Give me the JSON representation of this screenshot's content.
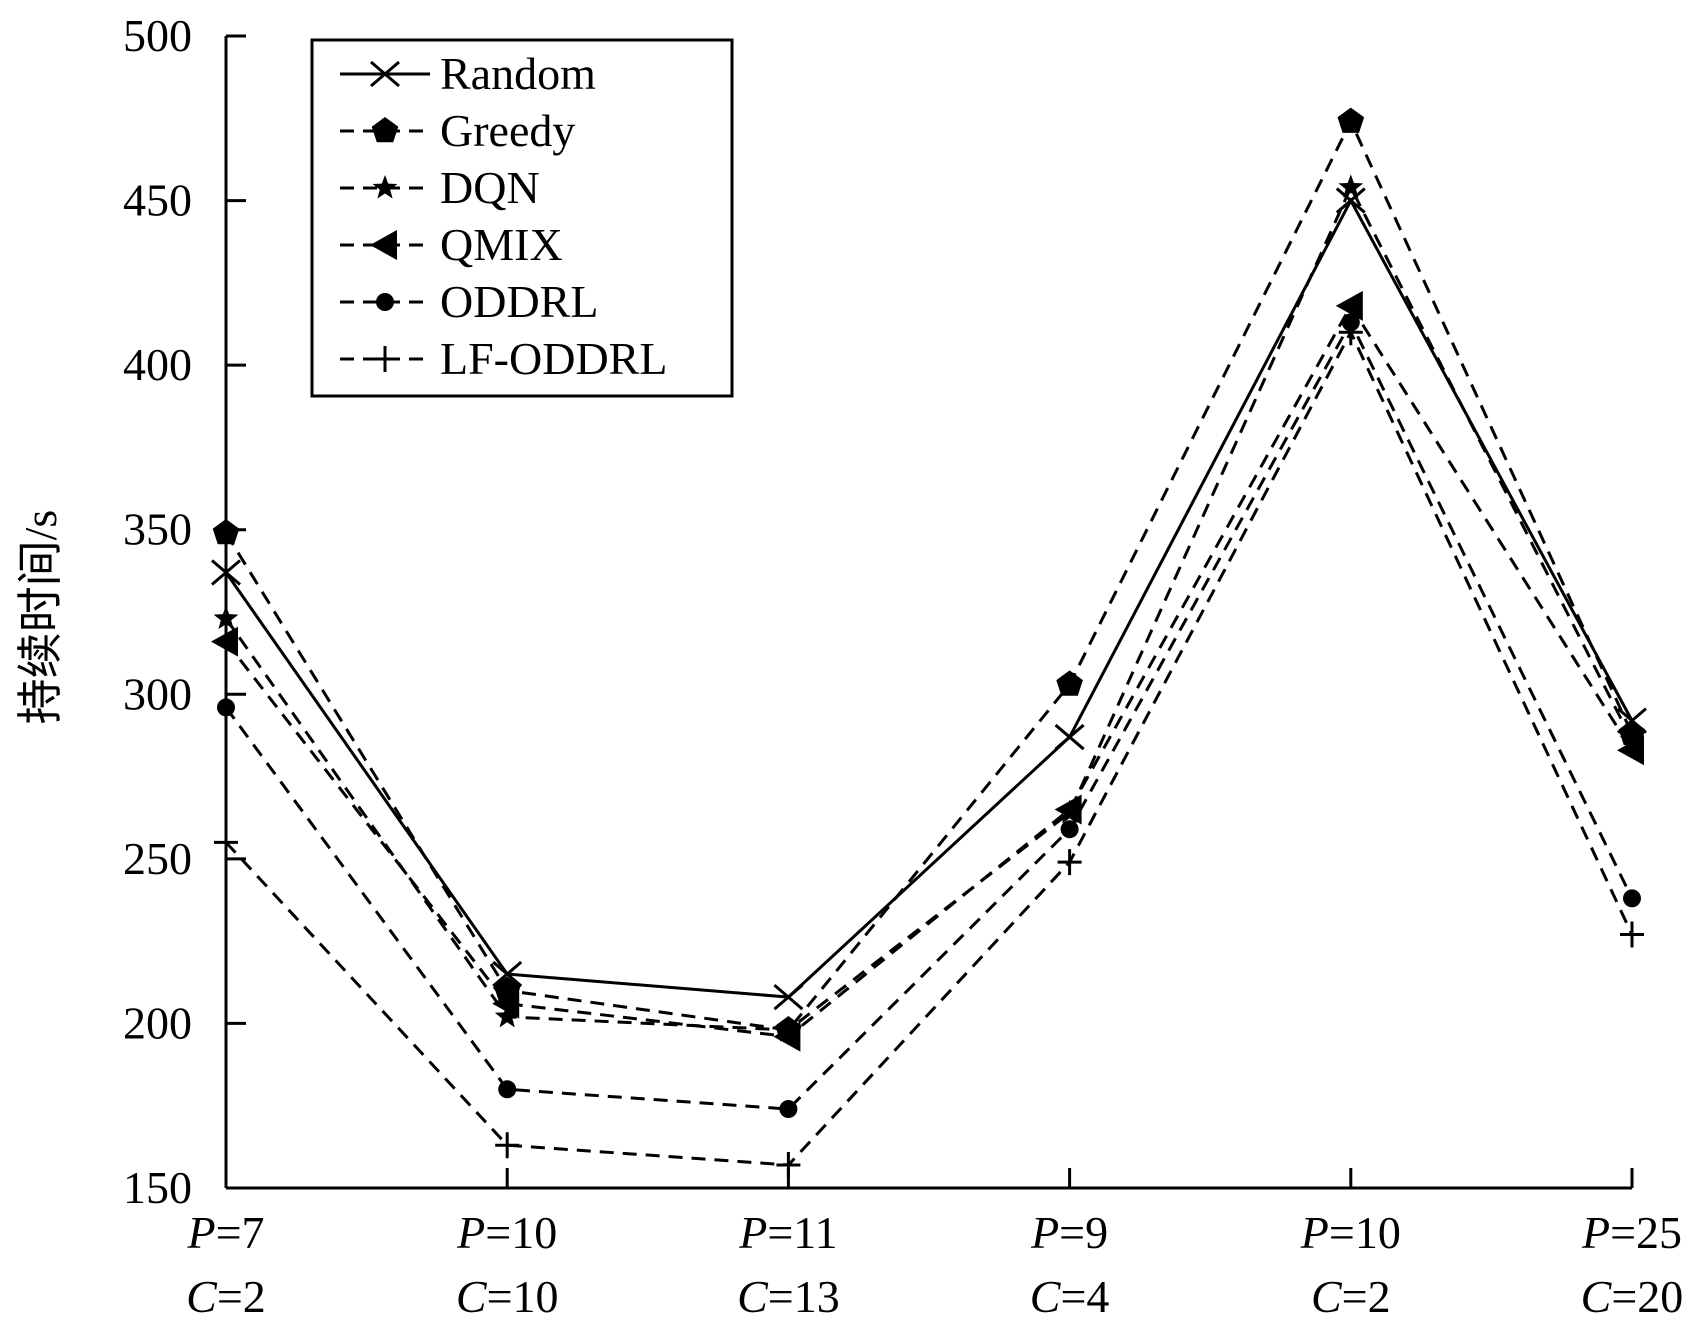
{
  "chart_data": {
    "type": "line",
    "title": "",
    "xlabel": "",
    "ylabel": "持续时间/s",
    "ylim": [
      150,
      500
    ],
    "yticks": [
      150,
      200,
      250,
      300,
      350,
      400,
      450,
      500
    ],
    "categories": [
      {
        "p": "7",
        "c": "2"
      },
      {
        "p": "10",
        "c": "10"
      },
      {
        "p": "11",
        "c": "13"
      },
      {
        "p": "9",
        "c": "4"
      },
      {
        "p": "10",
        "c": "2"
      },
      {
        "p": "25",
        "c": "20"
      }
    ],
    "category_prefix_p": "P",
    "category_prefix_c": "C",
    "series": [
      {
        "name": "Random",
        "marker": "x",
        "dash": "solid",
        "values": [
          337,
          215,
          208,
          287,
          450,
          292
        ]
      },
      {
        "name": "Greedy",
        "marker": "pentagon",
        "dash": "dashed",
        "values": [
          349,
          210,
          198,
          303,
          474,
          288
        ]
      },
      {
        "name": "DQN",
        "marker": "star",
        "dash": "dashed",
        "values": [
          323,
          202,
          198,
          264,
          454,
          286
        ]
      },
      {
        "name": "QMIX",
        "marker": "triangle-left",
        "dash": "dashed",
        "values": [
          316,
          206,
          196,
          265,
          418,
          283
        ]
      },
      {
        "name": "ODDRL",
        "marker": "circle",
        "dash": "dashed",
        "values": [
          296,
          180,
          174,
          259,
          413,
          238
        ]
      },
      {
        "name": "LF-ODDRL",
        "marker": "plus",
        "dash": "dashed",
        "values": [
          255,
          163,
          157,
          249,
          410,
          227
        ]
      }
    ],
    "legend_position": "top-left",
    "grid": false
  }
}
